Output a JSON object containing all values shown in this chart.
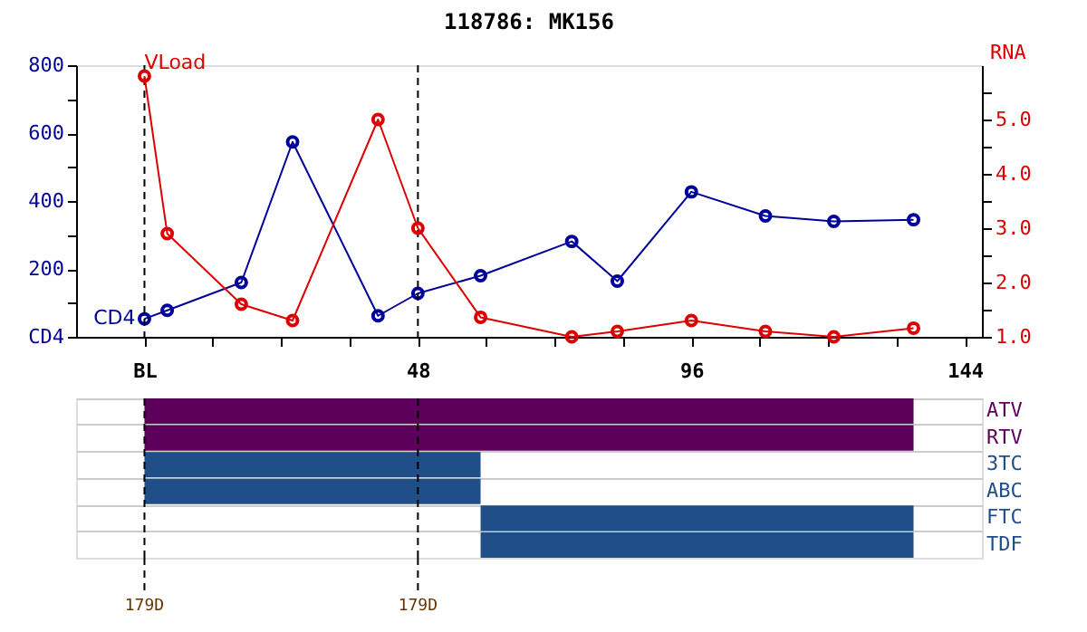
{
  "chart_data": [
    {
      "type": "line",
      "title": "118786: MK156",
      "y2label": "RNA",
      "xlim": [
        -12,
        147
      ],
      "xticks": [
        {
          "value": 0,
          "label": "BL"
        },
        {
          "value": 12,
          "label": null
        },
        {
          "value": 24,
          "label": null
        },
        {
          "value": 36,
          "label": null
        },
        48,
        {
          "value": 60,
          "label": null
        },
        {
          "value": 72,
          "label": null
        },
        {
          "value": 84,
          "label": null
        },
        96,
        {
          "value": 108,
          "label": null
        },
        {
          "value": 120,
          "label": null
        },
        {
          "value": 132,
          "label": null
        },
        144
      ],
      "ylim": [
        0,
        800
      ],
      "yticks": [
        {
          "value": 0,
          "label": "CD4"
        },
        {
          "value": 100,
          "label": null
        },
        200,
        {
          "value": 300,
          "label": null
        },
        400,
        {
          "value": 500,
          "label": null
        },
        600,
        {
          "value": 700,
          "label": null
        },
        800
      ],
      "y2lim": [
        1,
        6
      ],
      "y2ticks": [
        {
          "value": 1,
          "label": "1.0"
        },
        {
          "value": 1.5,
          "label": null
        },
        {
          "value": 2,
          "label": "2.0"
        },
        {
          "value": 2.5,
          "label": null
        },
        {
          "value": 3,
          "label": "3.0"
        },
        {
          "value": 3.5,
          "label": null
        },
        {
          "value": 4,
          "label": "4.0"
        },
        {
          "value": 4.5,
          "label": null
        },
        {
          "value": 5,
          "label": "5.0"
        },
        {
          "value": 5.5,
          "label": null
        }
      ],
      "marker": "circle",
      "grid": false,
      "series": [
        {
          "name": "CD4",
          "color": "#000099",
          "x": [
            0,
            4,
            17,
            26,
            41,
            48,
            59,
            75,
            83,
            96,
            109,
            121,
            135
          ],
          "values": [
            53,
            78,
            160,
            574,
            62,
            128,
            180,
            281,
            164,
            427,
            356,
            340,
            345
          ]
        },
        {
          "name": "VLoad",
          "color": "#dd0000",
          "axis": "y2",
          "x": [
            0,
            4,
            17,
            26,
            41,
            48,
            59,
            75,
            83,
            96,
            109,
            121,
            135
          ],
          "values": [
            5.8,
            2.9,
            1.6,
            1.3,
            5.0,
            3.0,
            1.36,
            1.0,
            1.1,
            1.3,
            1.1,
            1.0,
            1.16
          ]
        }
      ],
      "ref_lines": [
        {
          "axis": "x",
          "value": 0,
          "line_style": "dashed",
          "color": "#000000"
        },
        {
          "axis": "x",
          "value": 48,
          "line_style": "dashed",
          "color": "#000000"
        }
      ]
    },
    {
      "type": "bar",
      "orientation": "horizontal",
      "categories": [
        "ATV",
        "RTV",
        "3TC",
        "ABC",
        "FTC",
        "TDF"
      ],
      "base": [
        0,
        0,
        0,
        0,
        59,
        59
      ],
      "values": [
        135,
        135,
        59,
        59,
        76,
        76
      ],
      "colors": [
        "#5c005c",
        "#5c005c",
        "#1f4e89",
        "#1f4e89",
        "#1f4e89",
        "#1f4e89"
      ],
      "xlim": [
        -12,
        147
      ],
      "tick_labels": "y",
      "ref_lines": [
        {
          "axis": "x",
          "value": 0,
          "label": "179D",
          "line_style": "dashed",
          "color": "#000000"
        },
        {
          "axis": "x",
          "value": 48,
          "label": "179D",
          "line_style": "dashed",
          "color": "#000000"
        }
      ]
    }
  ]
}
